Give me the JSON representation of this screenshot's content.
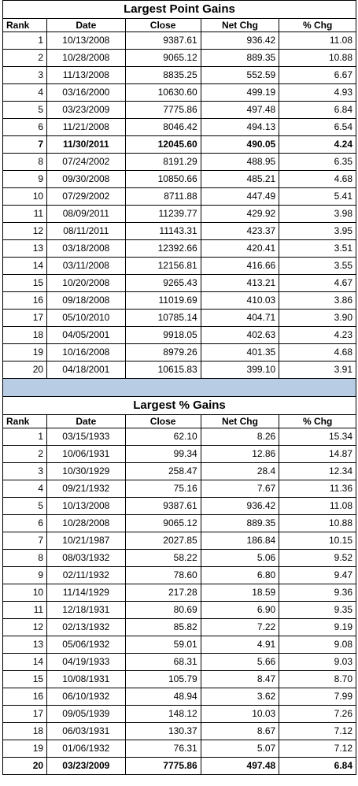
{
  "headers": {
    "rank": "Rank",
    "date": "Date",
    "close": "Close",
    "net_chg": "Net Chg",
    "pct_chg": "% Chg"
  },
  "tables": [
    {
      "title": "Largest Point Gains",
      "rows": [
        {
          "rank": "1",
          "date": "10/13/2008",
          "close": "9387.61",
          "net": "936.42",
          "pct": "11.08",
          "bold": false
        },
        {
          "rank": "2",
          "date": "10/28/2008",
          "close": "9065.12",
          "net": "889.35",
          "pct": "10.88",
          "bold": false
        },
        {
          "rank": "3",
          "date": "11/13/2008",
          "close": "8835.25",
          "net": "552.59",
          "pct": "6.67",
          "bold": false
        },
        {
          "rank": "4",
          "date": "03/16/2000",
          "close": "10630.60",
          "net": "499.19",
          "pct": "4.93",
          "bold": false
        },
        {
          "rank": "5",
          "date": "03/23/2009",
          "close": "7775.86",
          "net": "497.48",
          "pct": "6.84",
          "bold": false
        },
        {
          "rank": "6",
          "date": "11/21/2008",
          "close": "8046.42",
          "net": "494.13",
          "pct": "6.54",
          "bold": false
        },
        {
          "rank": "7",
          "date": "11/30/2011",
          "close": "12045.60",
          "net": "490.05",
          "pct": "4.24",
          "bold": true
        },
        {
          "rank": "8",
          "date": "07/24/2002",
          "close": "8191.29",
          "net": "488.95",
          "pct": "6.35",
          "bold": false
        },
        {
          "rank": "9",
          "date": "09/30/2008",
          "close": "10850.66",
          "net": "485.21",
          "pct": "4.68",
          "bold": false
        },
        {
          "rank": "10",
          "date": "07/29/2002",
          "close": "8711.88",
          "net": "447.49",
          "pct": "5.41",
          "bold": false
        },
        {
          "rank": "11",
          "date": "08/09/2011",
          "close": "11239.77",
          "net": "429.92",
          "pct": "3.98",
          "bold": false
        },
        {
          "rank": "12",
          "date": "08/11/2011",
          "close": "11143.31",
          "net": "423.37",
          "pct": "3.95",
          "bold": false
        },
        {
          "rank": "13",
          "date": "03/18/2008",
          "close": "12392.66",
          "net": "420.41",
          "pct": "3.51",
          "bold": false
        },
        {
          "rank": "14",
          "date": "03/11/2008",
          "close": "12156.81",
          "net": "416.66",
          "pct": "3.55",
          "bold": false
        },
        {
          "rank": "15",
          "date": "10/20/2008",
          "close": "9265.43",
          "net": "413.21",
          "pct": "4.67",
          "bold": false
        },
        {
          "rank": "16",
          "date": "09/18/2008",
          "close": "11019.69",
          "net": "410.03",
          "pct": "3.86",
          "bold": false
        },
        {
          "rank": "17",
          "date": "05/10/2010",
          "close": "10785.14",
          "net": "404.71",
          "pct": "3.90",
          "bold": false
        },
        {
          "rank": "18",
          "date": "04/05/2001",
          "close": "9918.05",
          "net": "402.63",
          "pct": "4.23",
          "bold": false
        },
        {
          "rank": "19",
          "date": "10/16/2008",
          "close": "8979.26",
          "net": "401.35",
          "pct": "4.68",
          "bold": false
        },
        {
          "rank": "20",
          "date": "04/18/2001",
          "close": "10615.83",
          "net": "399.10",
          "pct": "3.91",
          "bold": false
        }
      ]
    },
    {
      "title": "Largest % Gains",
      "rows": [
        {
          "rank": "1",
          "date": "03/15/1933",
          "close": "62.10",
          "net": "8.26",
          "pct": "15.34",
          "bold": false
        },
        {
          "rank": "2",
          "date": "10/06/1931",
          "close": "99.34",
          "net": "12.86",
          "pct": "14.87",
          "bold": false
        },
        {
          "rank": "3",
          "date": "10/30/1929",
          "close": "258.47",
          "net": "28.4",
          "pct": "12.34",
          "bold": false
        },
        {
          "rank": "4",
          "date": "09/21/1932",
          "close": "75.16",
          "net": "7.67",
          "pct": "11.36",
          "bold": false
        },
        {
          "rank": "5",
          "date": "10/13/2008",
          "close": "9387.61",
          "net": "936.42",
          "pct": "11.08",
          "bold": false
        },
        {
          "rank": "6",
          "date": "10/28/2008",
          "close": "9065.12",
          "net": "889.35",
          "pct": "10.88",
          "bold": false
        },
        {
          "rank": "7",
          "date": "10/21/1987",
          "close": "2027.85",
          "net": "186.84",
          "pct": "10.15",
          "bold": false
        },
        {
          "rank": "8",
          "date": "08/03/1932",
          "close": "58.22",
          "net": "5.06",
          "pct": "9.52",
          "bold": false
        },
        {
          "rank": "9",
          "date": "02/11/1932",
          "close": "78.60",
          "net": "6.80",
          "pct": "9.47",
          "bold": false
        },
        {
          "rank": "10",
          "date": "11/14/1929",
          "close": "217.28",
          "net": "18.59",
          "pct": "9.36",
          "bold": false
        },
        {
          "rank": "11",
          "date": "12/18/1931",
          "close": "80.69",
          "net": "6.90",
          "pct": "9.35",
          "bold": false
        },
        {
          "rank": "12",
          "date": "02/13/1932",
          "close": "85.82",
          "net": "7.22",
          "pct": "9.19",
          "bold": false
        },
        {
          "rank": "13",
          "date": "05/06/1932",
          "close": "59.01",
          "net": "4.91",
          "pct": "9.08",
          "bold": false
        },
        {
          "rank": "14",
          "date": "04/19/1933",
          "close": "68.31",
          "net": "5.66",
          "pct": "9.03",
          "bold": false
        },
        {
          "rank": "15",
          "date": "10/08/1931",
          "close": "105.79",
          "net": "8.47",
          "pct": "8.70",
          "bold": false
        },
        {
          "rank": "16",
          "date": "06/10/1932",
          "close": "48.94",
          "net": "3.62",
          "pct": "7.99",
          "bold": false
        },
        {
          "rank": "17",
          "date": "09/05/1939",
          "close": "148.12",
          "net": "10.03",
          "pct": "7.26",
          "bold": false
        },
        {
          "rank": "18",
          "date": "06/03/1931",
          "close": "130.37",
          "net": "8.67",
          "pct": "7.12",
          "bold": false
        },
        {
          "rank": "19",
          "date": "01/06/1932",
          "close": "76.31",
          "net": "5.07",
          "pct": "7.12",
          "bold": false
        },
        {
          "rank": "20",
          "date": "03/23/2009",
          "close": "7775.86",
          "net": "497.48",
          "pct": "6.84",
          "bold": true
        }
      ]
    }
  ],
  "colors": {
    "separator": "#b8cce4",
    "grid": "#000000"
  }
}
